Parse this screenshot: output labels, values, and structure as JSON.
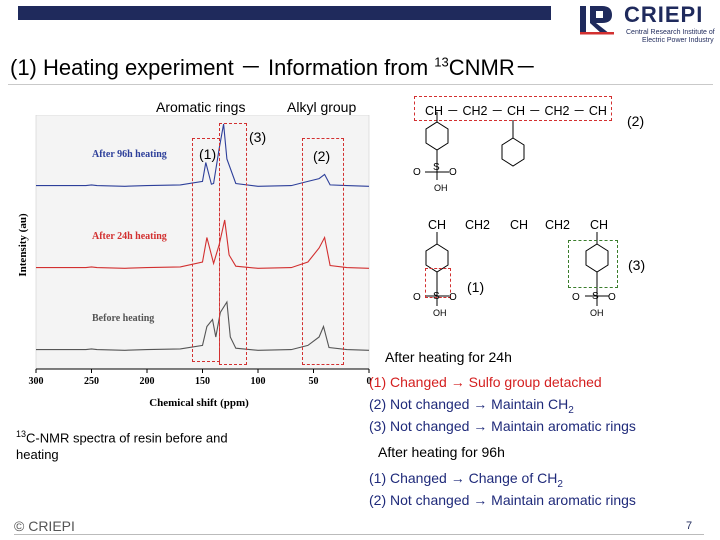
{
  "header": {
    "logo_name": "CRIEPI",
    "logo_sub1": "Central Research Institute of",
    "logo_sub2": "Electric Power Industry",
    "accent": "#1f2a5c"
  },
  "title": {
    "prefix": "(1) Heating experiment － Information from ",
    "sup": "13",
    "suffix": "CNMR－"
  },
  "labels": {
    "aromatic": "Aromatic rings",
    "alkyl": "Alkyl group",
    "box1": "(1)",
    "box3": "(3)",
    "box2": "(2)"
  },
  "chart_data": {
    "type": "line",
    "xlabel": "Chemical shift (ppm)",
    "ylabel": "Intensity (au)",
    "x_ticks": [
      "300",
      "250",
      "200",
      "150",
      "100",
      "50",
      "0"
    ],
    "xlim": [
      300,
      0
    ],
    "series": [
      {
        "name": "After 96h heating",
        "color": "#2d3f9a",
        "x": [
          300,
          255,
          250,
          245,
          220,
          200,
          170,
          150,
          147,
          142,
          140,
          135,
          131,
          128,
          120,
          100,
          70,
          55,
          45,
          40,
          35,
          20,
          0
        ],
        "y": [
          0.02,
          0.02,
          0.03,
          0.02,
          0.01,
          0.02,
          0.03,
          0.08,
          0.35,
          0.04,
          0.05,
          0.55,
          0.9,
          0.4,
          0.05,
          0.01,
          0.02,
          0.08,
          0.12,
          0.18,
          0.03,
          0.02,
          0.01
        ]
      },
      {
        "name": "After 24h heating",
        "color": "#d23030",
        "x": [
          300,
          255,
          250,
          245,
          220,
          200,
          170,
          150,
          146,
          140,
          135,
          130,
          126,
          120,
          100,
          70,
          55,
          45,
          40,
          35,
          20,
          0
        ],
        "y": [
          0.02,
          0.02,
          0.03,
          0.02,
          0.01,
          0.02,
          0.03,
          0.1,
          0.45,
          0.08,
          0.35,
          0.7,
          0.2,
          0.04,
          0.01,
          0.02,
          0.1,
          0.3,
          0.45,
          0.05,
          0.02,
          0.01
        ]
      },
      {
        "name": "Before heating",
        "color": "#555555",
        "x": [
          300,
          255,
          250,
          245,
          220,
          200,
          170,
          150,
          146,
          141,
          138,
          134,
          128,
          125,
          120,
          100,
          70,
          55,
          45,
          41,
          36,
          20,
          0
        ],
        "y": [
          0.02,
          0.02,
          0.03,
          0.02,
          0.01,
          0.02,
          0.03,
          0.08,
          0.35,
          0.45,
          0.2,
          0.55,
          0.7,
          0.2,
          0.04,
          0.01,
          0.02,
          0.08,
          0.2,
          0.35,
          0.05,
          0.02,
          0.01
        ]
      }
    ]
  },
  "chem": {
    "top_chain": "CH － CH2 － CH － CH2 － CH",
    "top_label": "(2)",
    "bottom_chain": [
      "CH",
      "CH2",
      "CH",
      "CH2",
      "CH"
    ],
    "label_1": "(1)",
    "label_3": "(3)",
    "sulfo_S": "S",
    "sulfo_O": "O",
    "sulfo_OH": "OH"
  },
  "caption": {
    "sup": "13",
    "text": "C-NMR spectra of resin before and",
    "text2": "heating"
  },
  "results": {
    "h24_title": "After heating for 24h",
    "h24_1": "(1) Changed → Sulfo group detached",
    "h24_2": "(2) Not changed → Maintain CH",
    "h24_2_sub": "2",
    "h24_3": "(3) Not changed → Maintain aromatic rings",
    "h96_title": "After heating for 96h",
    "h96_1": "(1) Changed → Change of  CH",
    "h96_1_sub": "2",
    "h96_2": "(2) Not changed → Maintain aromatic rings"
  },
  "footer": {
    "logo": "© CRIEPI",
    "page": "7"
  }
}
